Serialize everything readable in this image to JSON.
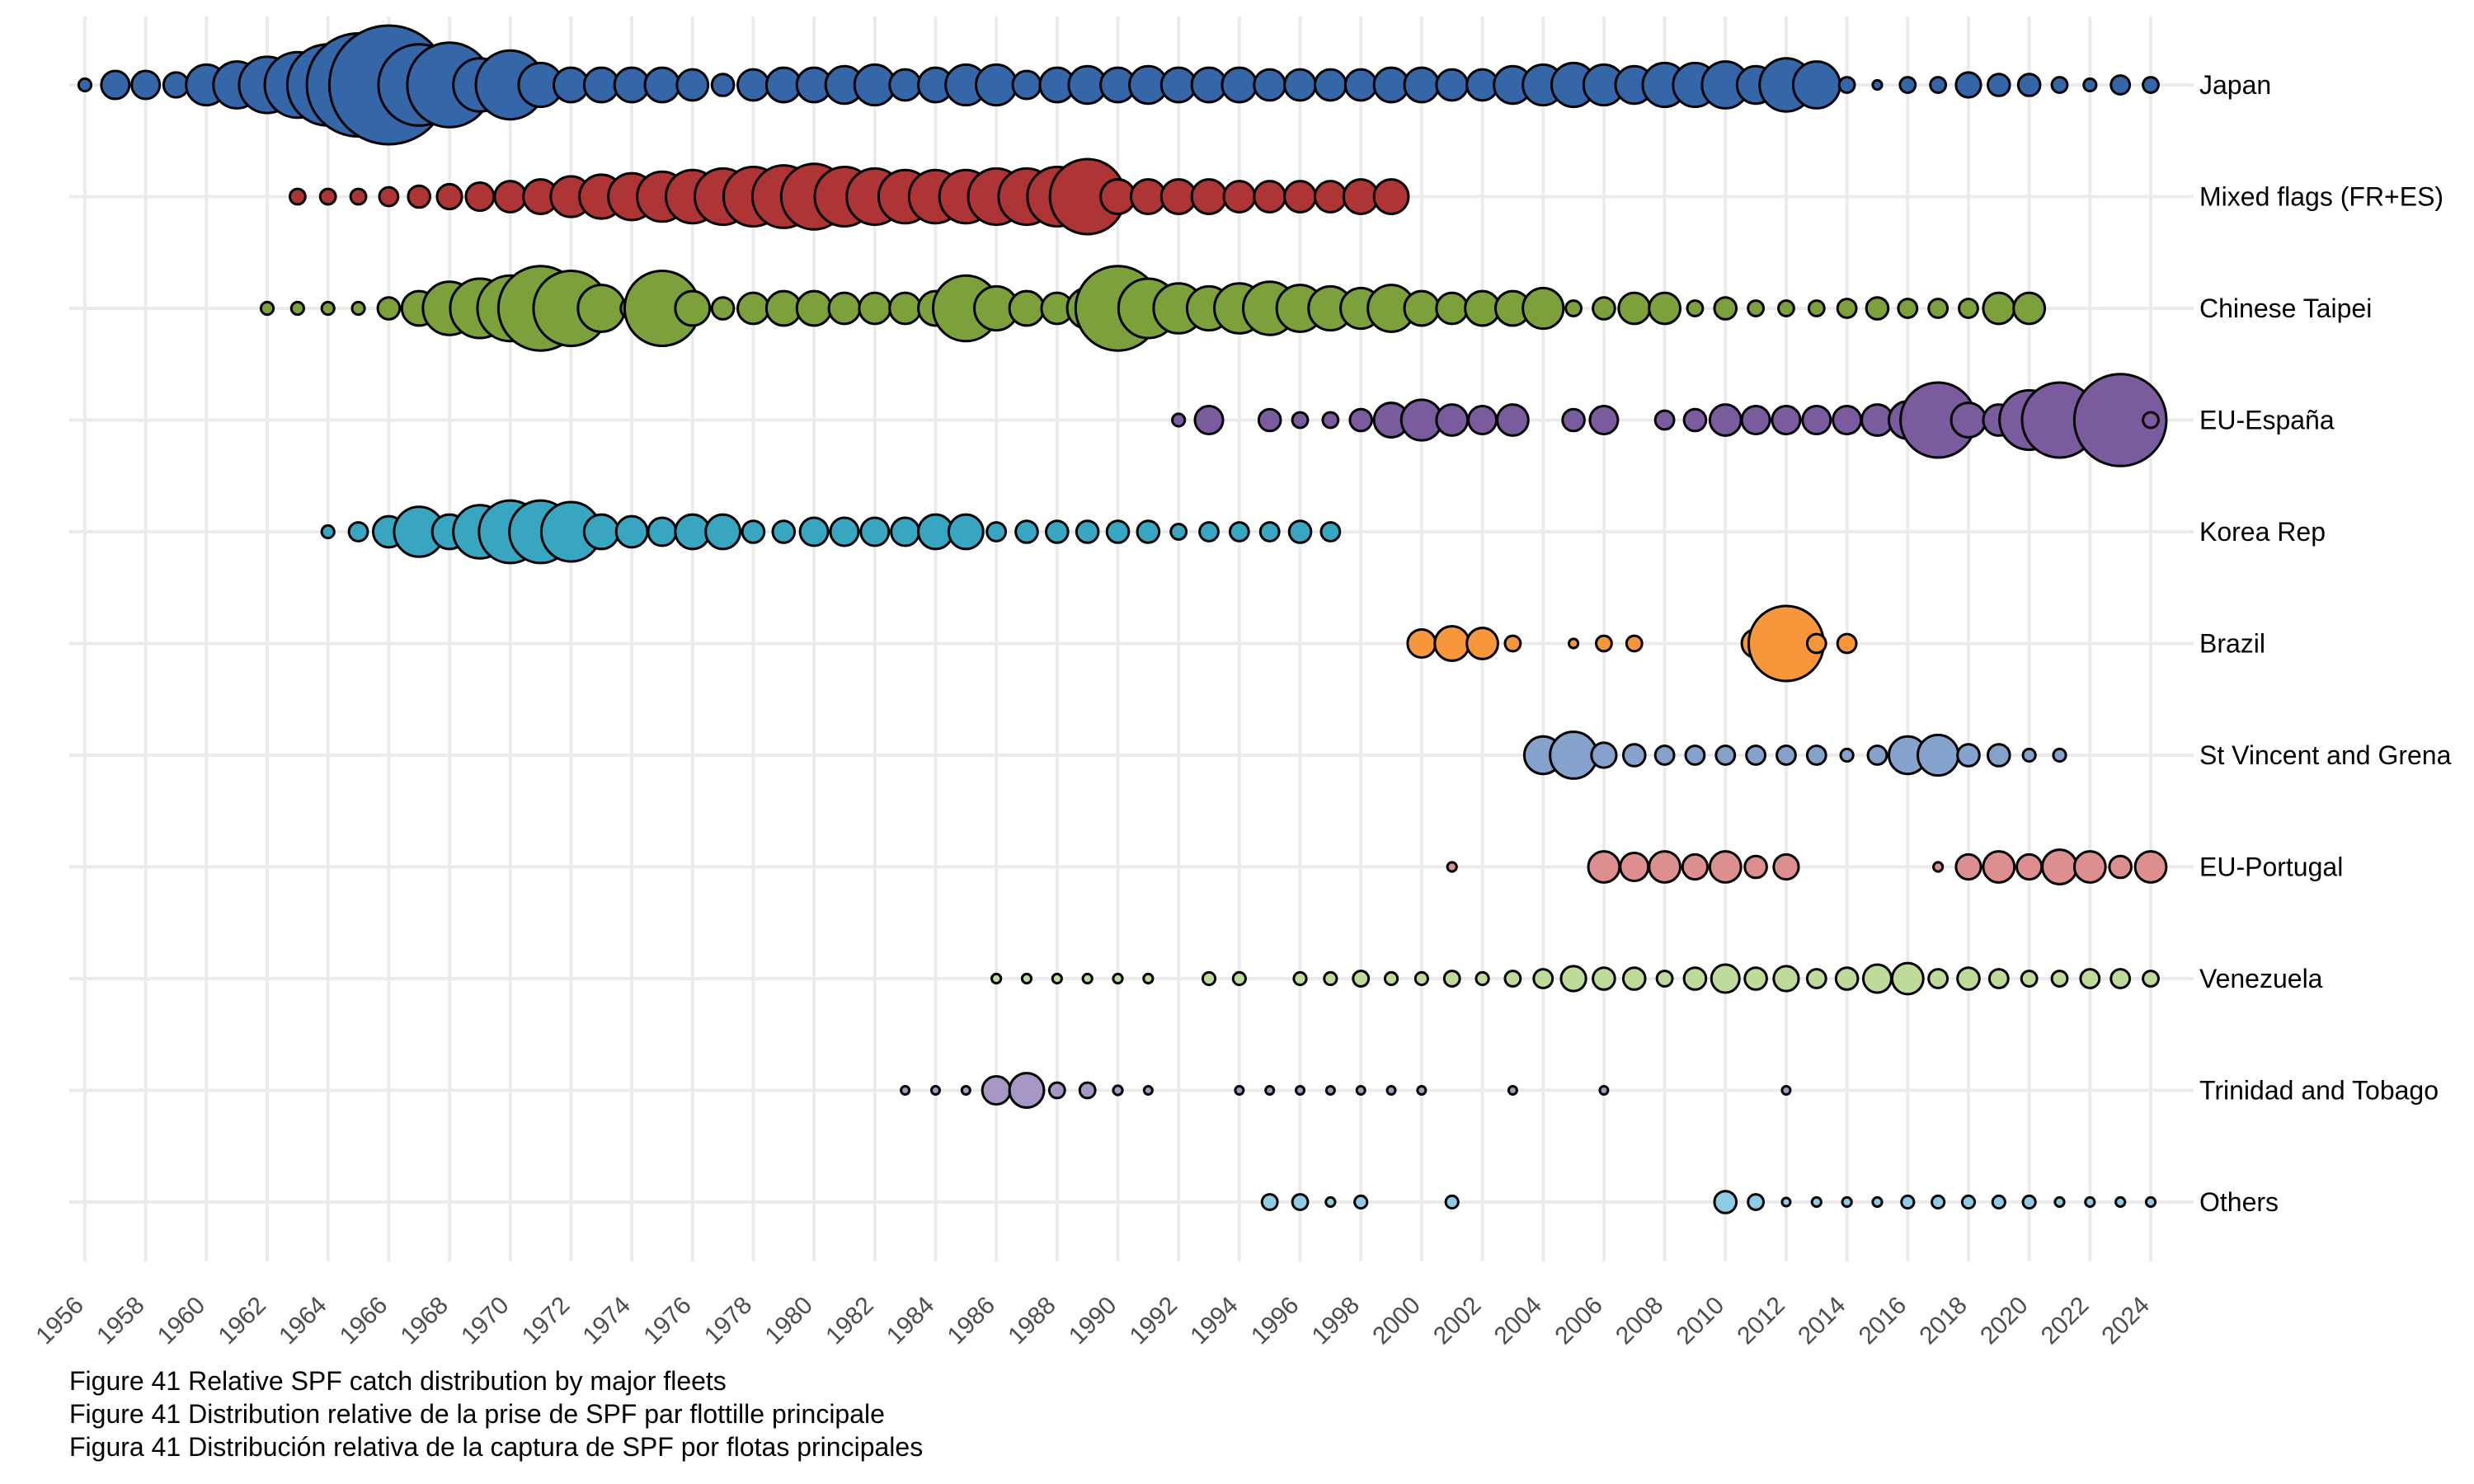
{
  "chart_data": {
    "type": "bubble-timeline",
    "title": "",
    "xlabel": "",
    "ylabel": "",
    "x_range": [
      1956,
      2024
    ],
    "x_ticks": [
      1956,
      1958,
      1960,
      1962,
      1964,
      1966,
      1968,
      1970,
      1972,
      1974,
      1976,
      1978,
      1980,
      1982,
      1984,
      1986,
      1988,
      1990,
      1992,
      1994,
      1996,
      1998,
      2000,
      2002,
      2004,
      2006,
      2008,
      2010,
      2012,
      2014,
      2016,
      2018,
      2020,
      2022,
      2024
    ],
    "x_tick_labels": [
      "1956",
      "1958",
      "1960",
      "1962",
      "1964",
      "1966",
      "1968",
      "1970",
      "1972",
      "1974",
      "1976",
      "1978",
      "1980",
      "1982",
      "1984",
      "1986",
      "1988",
      "1990",
      "1992",
      "1994",
      "1996",
      "1998",
      "2000",
      "2002",
      "2004",
      "2006",
      "2008",
      "2010",
      "2012",
      "2014",
      "2016",
      "2018",
      "2020",
      "2022",
      "2024"
    ],
    "value_note": "relative catch (bubble area), 100 = largest bubble",
    "grid": true,
    "series": [
      {
        "name": "Japan",
        "color": "#3566A8",
        "start": 1956,
        "values": [
          1.1,
          5.6,
          5.6,
          4.4,
          11.7,
          15.6,
          22.4,
          30.5,
          46.8,
          75.4,
          100,
          46.8,
          50.5,
          20,
          33.5,
          13.6,
          8.4,
          8.4,
          8.4,
          8.4,
          6.9,
          3.4,
          6.9,
          8.4,
          8.4,
          10,
          11.7,
          6.9,
          8.4,
          11.7,
          11.7,
          5.6,
          8.4,
          10,
          8.4,
          10,
          8.4,
          8.4,
          8.4,
          6.9,
          6.9,
          6.9,
          6.9,
          8.4,
          8.4,
          6.9,
          6.9,
          10,
          11.7,
          13.6,
          11.7,
          10,
          13.6,
          13.6,
          15.6,
          10,
          20,
          15.6,
          1.7,
          0.6,
          1.7,
          1.7,
          4.4,
          3.4,
          3.4,
          1.7,
          1.1,
          2.5,
          1.7
        ]
      },
      {
        "name": "Mixed flags (FR+ES)",
        "color": "#AE3536",
        "start": 1963,
        "values": [
          1.7,
          1.7,
          1.7,
          2.5,
          3.4,
          4.4,
          5.6,
          6.9,
          8.4,
          11.7,
          13.6,
          15.6,
          17.7,
          20,
          22.4,
          25,
          27.7,
          30.5,
          25,
          22.4,
          20,
          20,
          20,
          22.4,
          22.4,
          25,
          40,
          8.4,
          8.4,
          8.4,
          8.4,
          6.9,
          6.9,
          6.9,
          6.9,
          8.4,
          8.4
        ]
      },
      {
        "name": "Chinese Taipei",
        "color": "#7CA03C",
        "start": 1962,
        "values": [
          1.1,
          1.1,
          1.1,
          1.1,
          3.4,
          8.4,
          20,
          25,
          30.5,
          50.5,
          40,
          15.6,
          3.4,
          40,
          8.4,
          3.4,
          6.9,
          8.4,
          8.4,
          6.9,
          6.9,
          6.9,
          8.4,
          30.5,
          13.6,
          8.4,
          6.9,
          11.7,
          50.5,
          25,
          17.7,
          13.6,
          17.7,
          20,
          15.6,
          13.6,
          11.7,
          15.6,
          8.4,
          6.9,
          8.4,
          8.4,
          11.7,
          1.7,
          3.4,
          6.9,
          6.9,
          1.7,
          3.4,
          1.7,
          1.7,
          1.7,
          2.5,
          3.4,
          2.5,
          2.5,
          2.5,
          6.9,
          6.9
        ]
      },
      {
        "name": "EU-España",
        "color": "#7A5B9E",
        "start": 1992,
        "values": [
          1.1,
          5.6,
          null,
          3.4,
          1.7,
          1.7,
          3.4,
          8.4,
          11.7,
          6.9,
          5.6,
          6.9,
          null,
          3.4,
          5.6,
          null,
          2.5,
          3.4,
          6.9,
          5.6,
          5.6,
          5.6,
          5.6,
          6.9,
          10,
          40,
          8.4,
          6.9,
          25,
          40,
          6.9,
          60,
          1.7
        ]
      },
      {
        "name": "Korea Rep",
        "color": "#38A6C1",
        "start": 1964,
        "values": [
          1.1,
          2.5,
          6.9,
          17.7,
          8.4,
          20,
          27.7,
          27.7,
          25,
          8.4,
          6.9,
          5.6,
          8.4,
          8.4,
          3.4,
          3.4,
          5.6,
          5.6,
          5.6,
          5.6,
          8.4,
          8.4,
          2.5,
          3.4,
          3.4,
          3.4,
          3.4,
          3.4,
          1.7,
          2.5,
          2.5,
          2.5,
          3.4,
          2.5
        ]
      },
      {
        "name": "Brazil",
        "color": "#F7963A",
        "start": 2000,
        "values": [
          5.6,
          8.4,
          6.9,
          1.7,
          null,
          0.6,
          1.7,
          1.7,
          null,
          null,
          null,
          5.6,
          40,
          2.5,
          2.5
        ]
      },
      {
        "name": "St Vincent and Grenadines",
        "label": "St Vincent and Grena",
        "color": "#85A2CD",
        "start": 2004,
        "values": [
          10,
          15.6,
          4.4,
          3.4,
          2.5,
          2.5,
          2.5,
          2.5,
          2.5,
          2.5,
          1.1,
          2.5,
          10,
          11.7,
          3.4,
          3.4,
          1.1,
          1.1
        ]
      },
      {
        "name": "EU-Portugal",
        "color": "#DD8E8F",
        "start": 2001,
        "values": [
          0.6,
          null,
          null,
          null,
          null,
          6.9,
          5.6,
          6.9,
          4.4,
          6.9,
          3.4,
          4.4,
          null,
          null,
          null,
          null,
          0.6,
          4.4,
          6.9,
          4.4,
          8.4,
          6.9,
          3.4,
          6.9
        ]
      },
      {
        "name": "Venezuela",
        "color": "#BFDB9A",
        "start": 1986,
        "values": [
          0.6,
          0.6,
          0.6,
          0.6,
          0.6,
          0.6,
          null,
          1.1,
          1.1,
          null,
          1.1,
          1.1,
          1.7,
          1.1,
          1.1,
          1.7,
          1.1,
          1.7,
          2.5,
          4.4,
          3.4,
          3.4,
          1.7,
          3.4,
          5.6,
          3.4,
          4.4,
          2.5,
          3.4,
          5.6,
          6.9,
          2.5,
          3.4,
          2.5,
          1.7,
          1.7,
          2.5,
          2.5,
          1.7
        ]
      },
      {
        "name": "Trinidad and Tobago",
        "color": "#A797C7",
        "start": 1983,
        "values": [
          0.3,
          0.3,
          0.3,
          5.6,
          8.4,
          1.7,
          1.7,
          0.6,
          0.3,
          null,
          null,
          0.3,
          0.3,
          0.3,
          0.3,
          0.3,
          0.3,
          0.3,
          null,
          null,
          0.3,
          null,
          null,
          0.3,
          null,
          null,
          null,
          null,
          null,
          0.3
        ]
      },
      {
        "name": "Others",
        "color": "#8ECBE5",
        "start": 1995,
        "values": [
          1.7,
          1.7,
          0.6,
          1.1,
          null,
          null,
          1.1,
          null,
          null,
          null,
          null,
          null,
          null,
          null,
          null,
          3.4,
          1.7,
          0.3,
          0.6,
          0.6,
          0.6,
          1.1,
          1.1,
          1.1,
          1.1,
          1.1,
          0.6,
          0.6,
          0.6,
          0.6
        ]
      }
    ],
    "bubble_outline": "#000000",
    "grid_color": "#EBEBEB",
    "tick_label_color": "#4D4D4D"
  },
  "captions": [
    "Figure 41 Relative SPF catch distribution by major fleets",
    "Figure 41 Distribution relative de la prise de SPF par flottille principale",
    "Figura 41 Distribución relativa de la captura de SPF por flotas principales"
  ]
}
